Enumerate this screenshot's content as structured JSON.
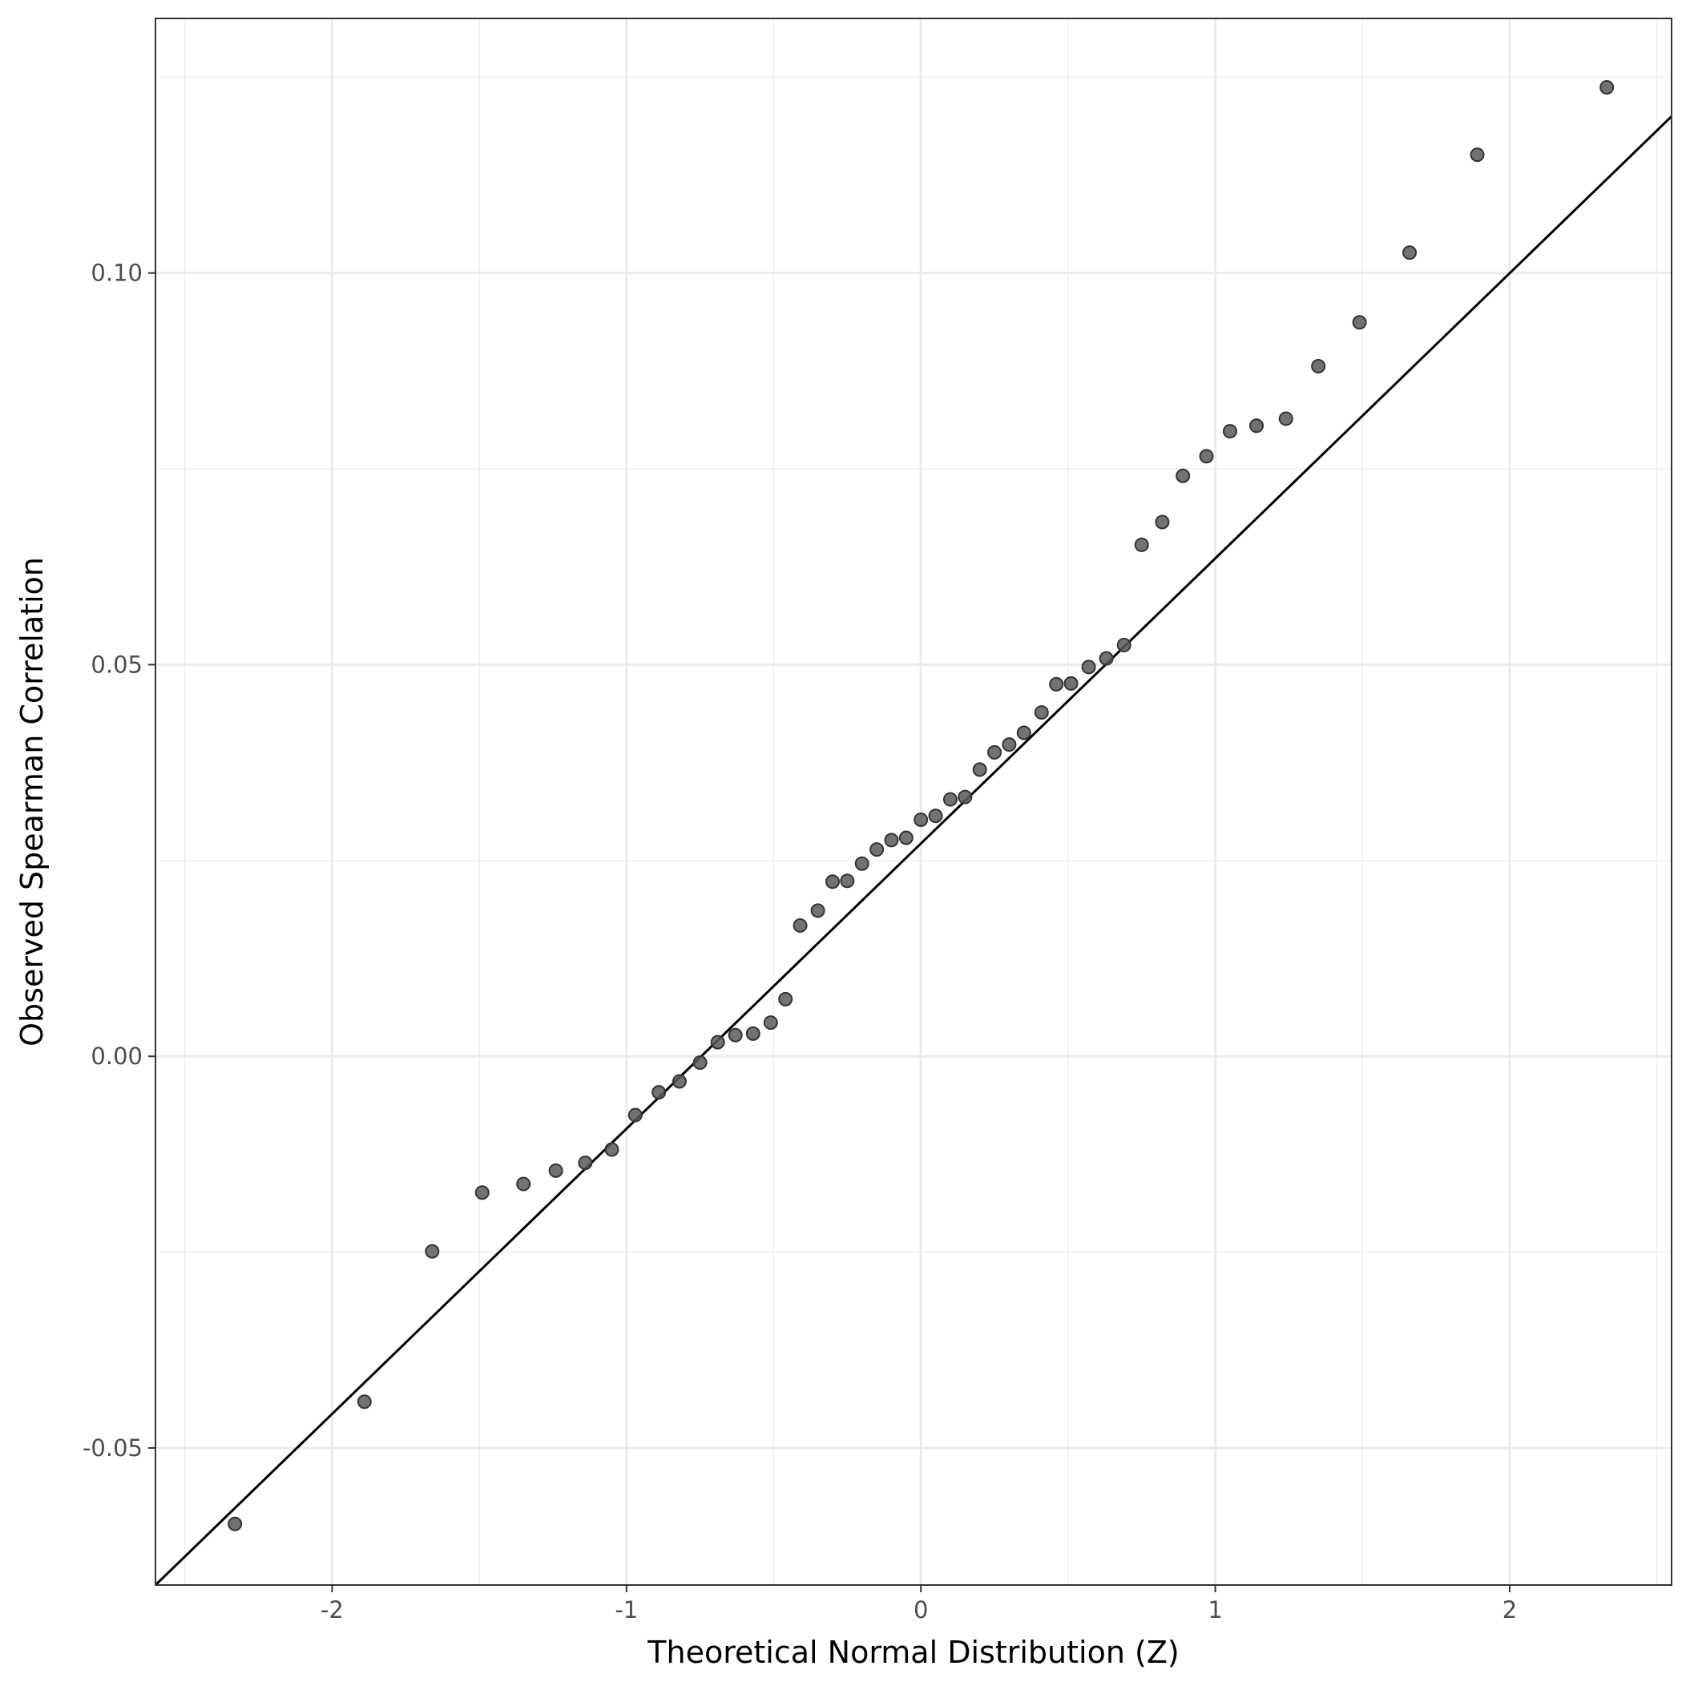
{
  "chart_data": {
    "type": "scatter",
    "xlabel": "Theoretical Normal Distribution (Z)",
    "ylabel": "Observed Spearman Correlation",
    "xlim": [
      -2.6,
      2.55
    ],
    "ylim": [
      -0.0675,
      0.1325
    ],
    "x_ticks": [
      {
        "value": -2,
        "label": "-2"
      },
      {
        "value": -1,
        "label": "-1"
      },
      {
        "value": 0,
        "label": "0"
      },
      {
        "value": 1,
        "label": "1"
      },
      {
        "value": 2,
        "label": "2"
      }
    ],
    "y_ticks": [
      {
        "value": -0.05,
        "label": "-0.05"
      },
      {
        "value": 0.0,
        "label": "0.00"
      },
      {
        "value": 0.05,
        "label": "0.05"
      },
      {
        "value": 0.1,
        "label": "0.10"
      }
    ],
    "grid": true,
    "reference_line": {
      "start": [
        -2.6,
        -0.0675
      ],
      "end": [
        2.55,
        0.12
      ]
    },
    "point_color": "#595959",
    "line_color": "#000000",
    "points": [
      {
        "x": -2.33,
        "y": -0.0597
      },
      {
        "x": -1.89,
        "y": -0.0441
      },
      {
        "x": -1.66,
        "y": -0.0249
      },
      {
        "x": -1.49,
        "y": -0.0174
      },
      {
        "x": -1.35,
        "y": -0.0163
      },
      {
        "x": -1.24,
        "y": -0.0146
      },
      {
        "x": -1.14,
        "y": -0.0136
      },
      {
        "x": -1.05,
        "y": -0.0119
      },
      {
        "x": -0.97,
        "y": -0.0075
      },
      {
        "x": -0.89,
        "y": -0.0046
      },
      {
        "x": -0.82,
        "y": -0.0032
      },
      {
        "x": -0.75,
        "y": -0.0008
      },
      {
        "x": -0.69,
        "y": 0.0018
      },
      {
        "x": -0.63,
        "y": 0.0027
      },
      {
        "x": -0.57,
        "y": 0.0029
      },
      {
        "x": -0.51,
        "y": 0.0043
      },
      {
        "x": -0.46,
        "y": 0.0073
      },
      {
        "x": -0.41,
        "y": 0.0167
      },
      {
        "x": -0.35,
        "y": 0.0186
      },
      {
        "x": -0.3,
        "y": 0.0223
      },
      {
        "x": -0.25,
        "y": 0.0224
      },
      {
        "x": -0.2,
        "y": 0.0246
      },
      {
        "x": -0.15,
        "y": 0.0264
      },
      {
        "x": -0.1,
        "y": 0.0276
      },
      {
        "x": -0.05,
        "y": 0.0279
      },
      {
        "x": 0.0,
        "y": 0.0302
      },
      {
        "x": 0.05,
        "y": 0.0307
      },
      {
        "x": 0.1,
        "y": 0.0328
      },
      {
        "x": 0.15,
        "y": 0.0331
      },
      {
        "x": 0.2,
        "y": 0.0366
      },
      {
        "x": 0.25,
        "y": 0.0388
      },
      {
        "x": 0.3,
        "y": 0.0398
      },
      {
        "x": 0.35,
        "y": 0.0413
      },
      {
        "x": 0.41,
        "y": 0.0439
      },
      {
        "x": 0.46,
        "y": 0.0475
      },
      {
        "x": 0.51,
        "y": 0.0476
      },
      {
        "x": 0.57,
        "y": 0.0497
      },
      {
        "x": 0.63,
        "y": 0.0508
      },
      {
        "x": 0.69,
        "y": 0.0525
      },
      {
        "x": 0.75,
        "y": 0.0653
      },
      {
        "x": 0.82,
        "y": 0.0682
      },
      {
        "x": 0.89,
        "y": 0.0741
      },
      {
        "x": 0.97,
        "y": 0.0766
      },
      {
        "x": 1.05,
        "y": 0.0798
      },
      {
        "x": 1.14,
        "y": 0.0805
      },
      {
        "x": 1.24,
        "y": 0.0814
      },
      {
        "x": 1.35,
        "y": 0.0881
      },
      {
        "x": 1.49,
        "y": 0.0937
      },
      {
        "x": 1.66,
        "y": 0.1026
      },
      {
        "x": 1.89,
        "y": 0.1151
      },
      {
        "x": 2.33,
        "y": 0.1237
      }
    ]
  }
}
